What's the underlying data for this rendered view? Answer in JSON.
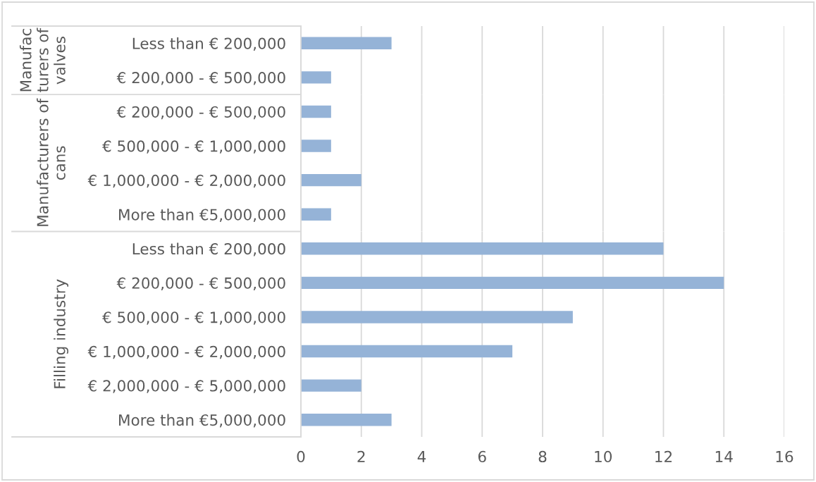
{
  "chart_data": [
    {
      "type": "bar",
      "orientation": "horizontal",
      "ylabel": "Manufac\nturers of\nvalves",
      "categories": [
        "Less than € 200,000",
        "€ 200,000 - € 500,000"
      ],
      "values": [
        3,
        1
      ],
      "color": "#95b3d7",
      "xlim": [
        0,
        16
      ],
      "xticks": [
        0,
        2,
        4,
        6,
        8,
        10,
        12,
        14,
        16
      ],
      "grid": "x",
      "tick_labels": "y"
    },
    {
      "type": "bar",
      "orientation": "horizontal",
      "ylabel": "Manufacturers of\ncans",
      "categories": [
        "€ 200,000 - € 500,000",
        "€ 500,000 - € 1,000,000",
        "€ 1,000,000 - € 2,000,000",
        "More than €5,000,000"
      ],
      "values": [
        1,
        1,
        2,
        1
      ],
      "color": "#95b3d7",
      "xlim": [
        0,
        16
      ],
      "xticks": [
        0,
        2,
        4,
        6,
        8,
        10,
        12,
        14,
        16
      ],
      "grid": "x",
      "tick_labels": "y"
    },
    {
      "type": "bar",
      "orientation": "horizontal",
      "ylabel": "Filling industry",
      "categories": [
        "Less than € 200,000",
        "€ 200,000 - € 500,000",
        "€ 500,000 - € 1,000,000",
        "€ 1,000,000 - € 2,000,000",
        "€ 2,000,000 - € 5,000,000",
        "More than €5,000,000"
      ],
      "values": [
        12,
        14,
        9,
        7,
        2,
        3
      ],
      "color": "#95b3d7",
      "xlim": [
        0,
        16
      ],
      "xticks": [
        0,
        2,
        4,
        6,
        8,
        10,
        12,
        14,
        16
      ],
      "grid": "x"
    }
  ]
}
